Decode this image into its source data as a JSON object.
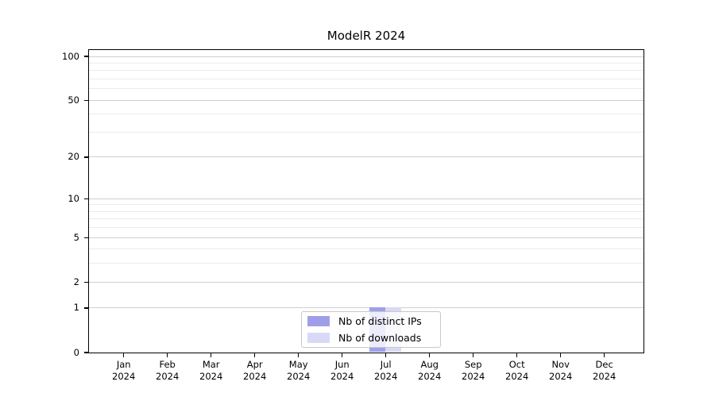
{
  "chart_data": {
    "type": "bar",
    "title": "ModelR 2024",
    "x_categories": [
      "Jan",
      "Feb",
      "Mar",
      "Apr",
      "May",
      "Jun",
      "Jul",
      "Aug",
      "Sep",
      "Oct",
      "Nov",
      "Dec"
    ],
    "x_year": "2024",
    "series": [
      {
        "name": "Nb of distinct IPs",
        "color": "#9f9fe9",
        "values": [
          0,
          0,
          0,
          0,
          0,
          0,
          1,
          0,
          0,
          0,
          0,
          0
        ]
      },
      {
        "name": "Nb of downloads",
        "color": "#d9d9f6",
        "values": [
          0,
          0,
          0,
          0,
          0,
          0,
          1,
          0,
          0,
          0,
          0,
          0
        ]
      }
    ],
    "y_scale": "log1p",
    "ylim": [
      0,
      100
    ],
    "y_major_ticks": [
      0,
      1,
      2,
      5,
      10,
      20,
      50,
      100
    ],
    "y_minor_gridlines": [
      3,
      4,
      6,
      7,
      8,
      9,
      30,
      40,
      60,
      70,
      80,
      90
    ],
    "grid": true,
    "legend_position": "bottom-center",
    "colors": {
      "major_grid": "#cfcfcf",
      "minor_grid": "#ebebeb",
      "axis": "#000000",
      "background": "#ffffff"
    }
  }
}
